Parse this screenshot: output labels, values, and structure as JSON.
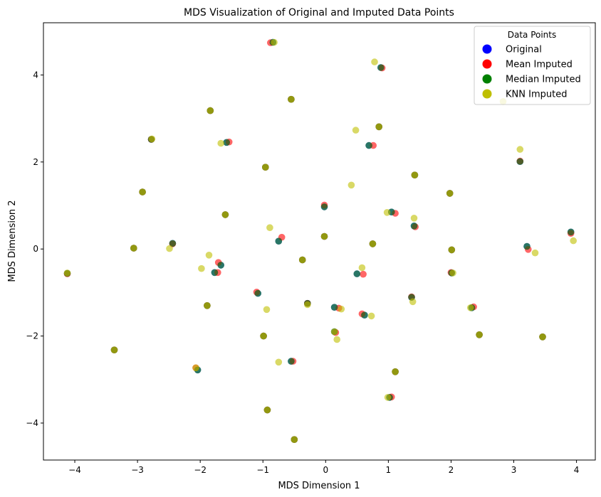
{
  "chart_data": {
    "type": "scatter",
    "title": "MDS Visualization of Original and Imputed Data Points",
    "xlabel": "MDS Dimension 1",
    "ylabel": "MDS Dimension 2",
    "xlim": [
      -4.5,
      4.3
    ],
    "ylim": [
      -4.85,
      5.2
    ],
    "xticks": [
      -4,
      -3,
      -2,
      -1,
      0,
      1,
      2,
      3,
      4
    ],
    "yticks": [
      -4,
      -2,
      0,
      2,
      4
    ],
    "xtick_labels": [
      "−4",
      "−3",
      "−2",
      "−1",
      "0",
      "1",
      "2",
      "3",
      "4"
    ],
    "ytick_labels": [
      "−4",
      "−2",
      "0",
      "2",
      "4"
    ],
    "grid": false,
    "legend": {
      "title": "Data Points",
      "position": "top-right"
    },
    "series": [
      {
        "name": "Original",
        "color": "#0000ff",
        "points": [
          [
            -4.12,
            -0.56
          ],
          [
            -3.37,
            -2.32
          ],
          [
            -3.06,
            0.02
          ],
          [
            -2.92,
            1.31
          ],
          [
            -2.78,
            2.52
          ],
          [
            -2.44,
            0.13
          ],
          [
            -2.04,
            -2.78
          ],
          [
            -1.89,
            -1.3
          ],
          [
            -1.84,
            3.18
          ],
          [
            -1.77,
            -0.54
          ],
          [
            -1.67,
            -0.37
          ],
          [
            -1.6,
            0.79
          ],
          [
            -1.58,
            2.45
          ],
          [
            -1.08,
            -1.02
          ],
          [
            -0.99,
            -2.0
          ],
          [
            -0.96,
            1.88
          ],
          [
            -0.93,
            -3.7
          ],
          [
            -0.84,
            4.75
          ],
          [
            -0.75,
            0.18
          ],
          [
            -0.55,
            3.44
          ],
          [
            -0.55,
            -2.58
          ],
          [
            -0.5,
            -4.38
          ],
          [
            -0.37,
            -0.25
          ],
          [
            -0.29,
            -1.25
          ],
          [
            -0.02,
            0.29
          ],
          [
            -0.02,
            0.97
          ],
          [
            0.14,
            -1.34
          ],
          [
            0.14,
            -1.9
          ],
          [
            0.5,
            -0.57
          ],
          [
            0.62,
            -1.52
          ],
          [
            0.69,
            2.38
          ],
          [
            0.75,
            0.12
          ],
          [
            0.85,
            2.81
          ],
          [
            0.88,
            4.17
          ],
          [
            1.02,
            -3.41
          ],
          [
            1.05,
            0.85
          ],
          [
            1.11,
            -2.82
          ],
          [
            1.37,
            -1.11
          ],
          [
            1.41,
            0.53
          ],
          [
            1.42,
            1.7
          ],
          [
            1.98,
            1.28
          ],
          [
            2.01,
            -0.02
          ],
          [
            2.01,
            -0.55
          ],
          [
            2.33,
            -1.35
          ],
          [
            2.45,
            -1.97
          ],
          [
            3.1,
            2.01
          ],
          [
            3.21,
            0.06
          ],
          [
            3.46,
            -2.02
          ],
          [
            3.91,
            0.39
          ]
        ]
      },
      {
        "name": "Mean Imputed",
        "color": "#ff0000",
        "points": [
          [
            -4.12,
            -0.57
          ],
          [
            -3.37,
            -2.32
          ],
          [
            -3.06,
            0.02
          ],
          [
            -2.92,
            1.31
          ],
          [
            -2.78,
            2.52
          ],
          [
            -2.44,
            0.12
          ],
          [
            -2.07,
            -2.73
          ],
          [
            -1.89,
            -1.3
          ],
          [
            -1.84,
            3.18
          ],
          [
            -1.72,
            -0.54
          ],
          [
            -1.71,
            -0.31
          ],
          [
            -1.6,
            0.79
          ],
          [
            -1.54,
            2.46
          ],
          [
            -1.1,
            -0.99
          ],
          [
            -0.99,
            -2.0
          ],
          [
            -0.96,
            1.88
          ],
          [
            -0.93,
            -3.7
          ],
          [
            -0.88,
            4.74
          ],
          [
            -0.7,
            0.27
          ],
          [
            -0.55,
            3.44
          ],
          [
            -0.52,
            -2.58
          ],
          [
            -0.5,
            -4.38
          ],
          [
            -0.37,
            -0.25
          ],
          [
            -0.29,
            -1.25
          ],
          [
            -0.02,
            0.29
          ],
          [
            -0.02,
            1.01
          ],
          [
            0.21,
            -1.36
          ],
          [
            0.16,
            -1.92
          ],
          [
            0.6,
            -0.58
          ],
          [
            0.58,
            -1.49
          ],
          [
            0.76,
            2.38
          ],
          [
            0.75,
            0.12
          ],
          [
            0.85,
            2.81
          ],
          [
            0.9,
            4.16
          ],
          [
            1.05,
            -3.4
          ],
          [
            1.11,
            0.82
          ],
          [
            1.11,
            -2.82
          ],
          [
            1.37,
            -1.1
          ],
          [
            1.43,
            0.51
          ],
          [
            1.42,
            1.7
          ],
          [
            1.98,
            1.28
          ],
          [
            2.01,
            -0.02
          ],
          [
            2.0,
            -0.54
          ],
          [
            2.36,
            -1.33
          ],
          [
            2.45,
            -1.97
          ],
          [
            3.1,
            2.02
          ],
          [
            3.23,
            -0.01
          ],
          [
            3.46,
            -2.02
          ],
          [
            3.91,
            0.36
          ]
        ]
      },
      {
        "name": "Median Imputed",
        "color": "#008000",
        "points": [
          [
            -4.12,
            -0.56
          ],
          [
            -3.37,
            -2.32
          ],
          [
            -3.06,
            0.02
          ],
          [
            -2.92,
            1.31
          ],
          [
            -2.78,
            2.52
          ],
          [
            -2.44,
            0.13
          ],
          [
            -2.04,
            -2.78
          ],
          [
            -1.89,
            -1.3
          ],
          [
            -1.84,
            3.18
          ],
          [
            -1.77,
            -0.54
          ],
          [
            -1.67,
            -0.37
          ],
          [
            -1.6,
            0.79
          ],
          [
            -1.58,
            2.45
          ],
          [
            -1.08,
            -1.02
          ],
          [
            -0.99,
            -2.0
          ],
          [
            -0.96,
            1.88
          ],
          [
            -0.93,
            -3.7
          ],
          [
            -0.84,
            4.75
          ],
          [
            -0.75,
            0.18
          ],
          [
            -0.55,
            3.44
          ],
          [
            -0.55,
            -2.58
          ],
          [
            -0.5,
            -4.38
          ],
          [
            -0.37,
            -0.25
          ],
          [
            -0.29,
            -1.25
          ],
          [
            -0.02,
            0.29
          ],
          [
            -0.02,
            0.97
          ],
          [
            0.14,
            -1.34
          ],
          [
            0.14,
            -1.9
          ],
          [
            0.5,
            -0.57
          ],
          [
            0.62,
            -1.52
          ],
          [
            0.69,
            2.38
          ],
          [
            0.75,
            0.12
          ],
          [
            0.85,
            2.81
          ],
          [
            0.88,
            4.17
          ],
          [
            1.02,
            -3.41
          ],
          [
            1.05,
            0.85
          ],
          [
            1.11,
            -2.82
          ],
          [
            1.37,
            -1.11
          ],
          [
            1.41,
            0.53
          ],
          [
            1.42,
            1.7
          ],
          [
            1.98,
            1.28
          ],
          [
            2.01,
            -0.02
          ],
          [
            2.01,
            -0.55
          ],
          [
            2.33,
            -1.35
          ],
          [
            2.45,
            -1.97
          ],
          [
            3.1,
            2.01
          ],
          [
            3.21,
            0.06
          ],
          [
            3.46,
            -2.02
          ],
          [
            3.91,
            0.39
          ]
        ]
      },
      {
        "name": "KNN Imputed",
        "color": "#bfbf00",
        "points": [
          [
            -4.12,
            -0.55
          ],
          [
            -3.37,
            -2.32
          ],
          [
            -3.06,
            0.02
          ],
          [
            -2.92,
            1.31
          ],
          [
            -2.77,
            2.53
          ],
          [
            -2.49,
            0.01
          ],
          [
            -2.07,
            -2.73
          ],
          [
            -1.98,
            -0.45
          ],
          [
            -1.89,
            -1.3
          ],
          [
            -1.84,
            3.18
          ],
          [
            -1.86,
            -0.14
          ],
          [
            -1.6,
            0.79
          ],
          [
            -1.67,
            2.43
          ],
          [
            -0.94,
            -1.39
          ],
          [
            -0.99,
            -2.0
          ],
          [
            -0.96,
            1.88
          ],
          [
            -0.93,
            -3.7
          ],
          [
            -0.82,
            4.75
          ],
          [
            -0.89,
            0.49
          ],
          [
            -0.55,
            3.44
          ],
          [
            -0.75,
            -2.6
          ],
          [
            -0.5,
            -4.38
          ],
          [
            -0.37,
            -0.25
          ],
          [
            -0.29,
            -1.28
          ],
          [
            -0.02,
            0.29
          ],
          [
            0.18,
            -2.08
          ],
          [
            0.25,
            -1.38
          ],
          [
            0.14,
            -1.9
          ],
          [
            0.58,
            -0.43
          ],
          [
            0.48,
            2.73
          ],
          [
            0.41,
            1.47
          ],
          [
            0.73,
            -1.54
          ],
          [
            0.75,
            0.12
          ],
          [
            0.85,
            2.81
          ],
          [
            0.78,
            4.3
          ],
          [
            0.99,
            -3.41
          ],
          [
            0.98,
            0.84
          ],
          [
            1.11,
            -2.82
          ],
          [
            1.39,
            -1.21
          ],
          [
            1.41,
            0.71
          ],
          [
            1.42,
            1.7
          ],
          [
            1.98,
            1.28
          ],
          [
            2.01,
            -0.02
          ],
          [
            2.03,
            -0.55
          ],
          [
            2.31,
            -1.35
          ],
          [
            2.45,
            -1.97
          ],
          [
            2.83,
            3.39
          ],
          [
            3.1,
            2.29
          ],
          [
            3.34,
            -0.09
          ],
          [
            3.46,
            -2.02
          ],
          [
            3.95,
            0.19
          ]
        ]
      }
    ]
  }
}
